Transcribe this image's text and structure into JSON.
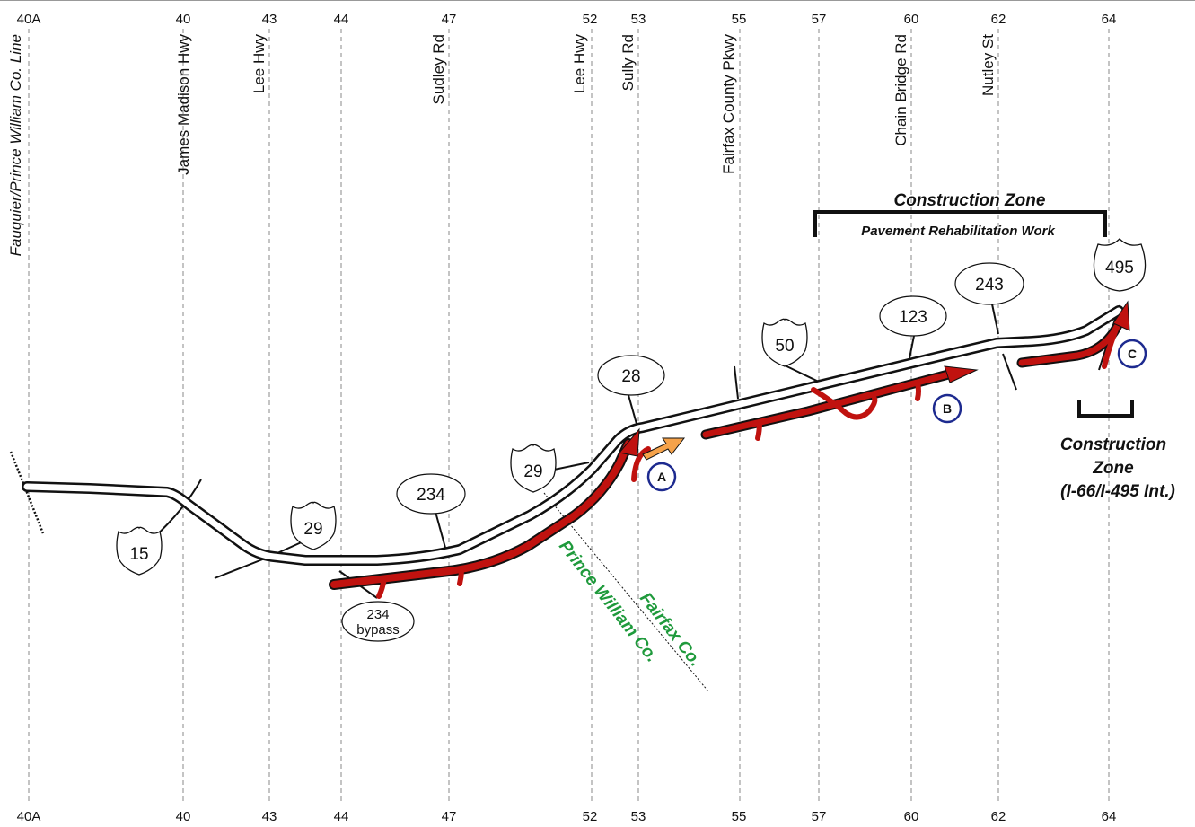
{
  "exits": [
    {
      "num": "40A",
      "road": ""
    },
    {
      "num": "40",
      "road": "James Madison Hwy"
    },
    {
      "num": "43",
      "road": "Lee Hwy"
    },
    {
      "num": "44",
      "road": ""
    },
    {
      "num": "47",
      "road": "Sudley Rd"
    },
    {
      "num": "52",
      "road": "Lee Hwy"
    },
    {
      "num": "53",
      "road": "Sully Rd"
    },
    {
      "num": "55",
      "road": "Fairfax County Pkwy"
    },
    {
      "num": "57",
      "road": ""
    },
    {
      "num": "60",
      "road": "Chain Bridge Rd"
    },
    {
      "num": "62",
      "road": "Nutley St"
    },
    {
      "num": "64",
      "road": ""
    }
  ],
  "county_line_label": "Fauquier/Prince William Co. Line",
  "construction_zone_main": {
    "title": "Construction Zone",
    "subtitle": "Pavement Rehabilitation Work"
  },
  "construction_zone_interchange": {
    "line1": "Construction",
    "line2": "Zone",
    "line3": "(I-66/I-495 Int.)"
  },
  "counties": {
    "prince_william": "Prince William Co.",
    "fairfax": "Fairfax Co."
  },
  "route_markers": {
    "us15": "15",
    "us29_west": "29",
    "va234": "234",
    "us29_east": "29",
    "va28": "28",
    "us50": "50",
    "va123": "123",
    "va243": "243",
    "i495": "495",
    "va234_bypass_num": "234",
    "va234_bypass_word": "bypass"
  },
  "work_markers": {
    "a": "A",
    "b": "B",
    "c": "C"
  },
  "colors": {
    "work_zone": "#c0120f",
    "ramp_work": "#f5a24a",
    "county_line": "#1f9a3c",
    "marker_circle": "#1d2a8f"
  }
}
